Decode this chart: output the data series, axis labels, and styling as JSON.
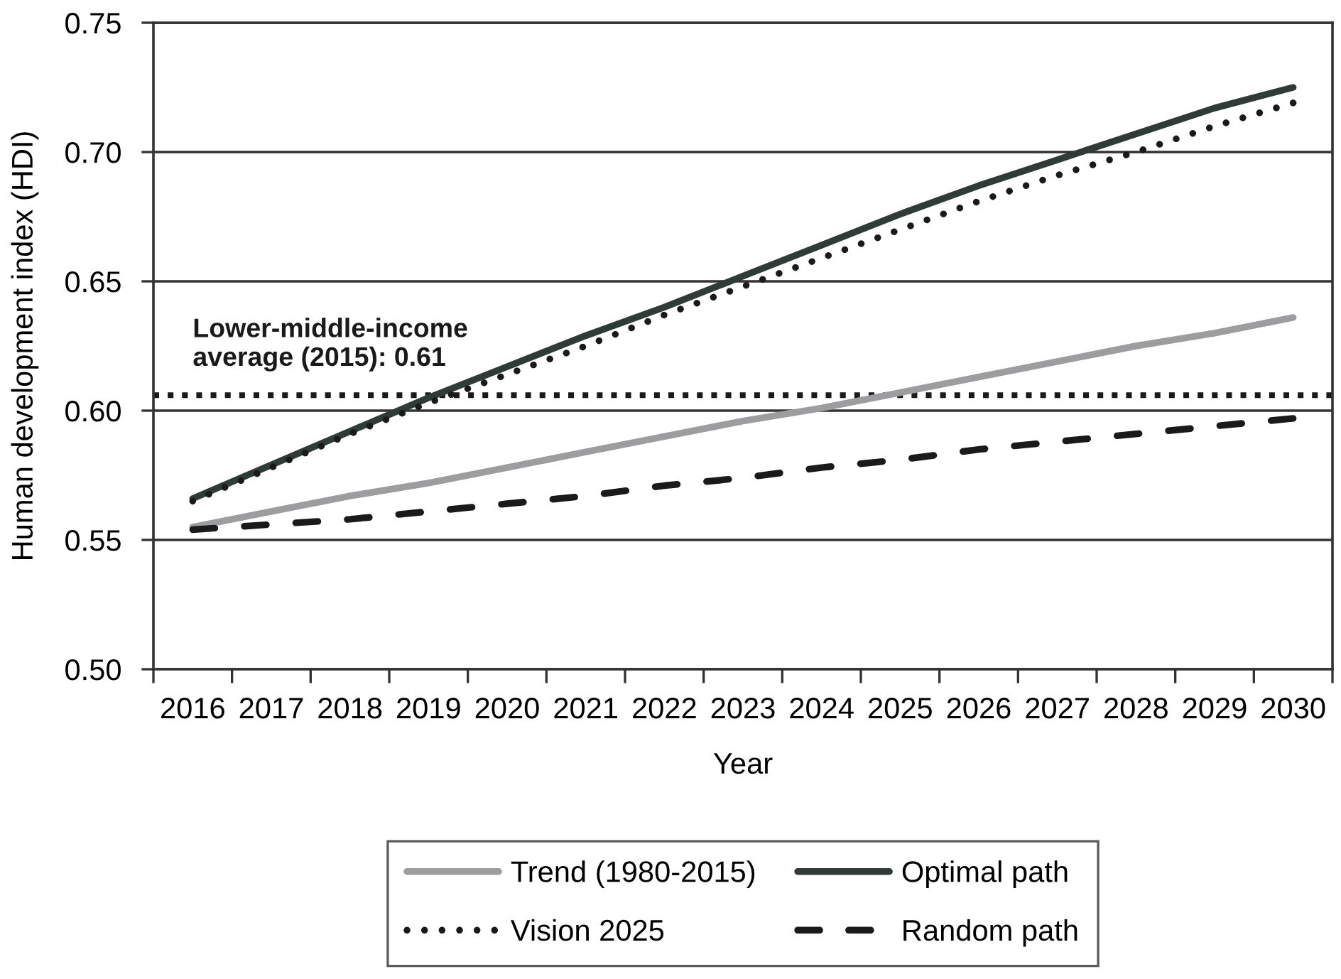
{
  "chart_data": {
    "type": "line",
    "xlabel": "Year",
    "ylabel": "Human development index (HDI)",
    "categories": [
      "2016",
      "2017",
      "2018",
      "2019",
      "2020",
      "2021",
      "2022",
      "2023",
      "2024",
      "2025",
      "2026",
      "2027",
      "2028",
      "2029",
      "2030"
    ],
    "series": [
      {
        "name": "Trend (1980-2015)",
        "color": "#9d9d9f",
        "line_style": "solid",
        "values": [
          0.555,
          0.561,
          0.567,
          0.572,
          0.578,
          0.584,
          0.59,
          0.596,
          0.601,
          0.607,
          0.613,
          0.619,
          0.625,
          0.63,
          0.636
        ]
      },
      {
        "name": "Optimal path",
        "color": "#2f3b37",
        "line_style": "solid",
        "values": [
          0.566,
          0.579,
          0.592,
          0.605,
          0.617,
          0.629,
          0.64,
          0.652,
          0.664,
          0.676,
          0.687,
          0.697,
          0.707,
          0.717,
          0.725
        ]
      },
      {
        "name": "Vision 2025",
        "color": "#1a1a1a",
        "line_style": "dotted",
        "values": [
          0.565,
          0.578,
          0.591,
          0.603,
          0.614,
          0.625,
          0.637,
          0.648,
          0.659,
          0.67,
          0.681,
          0.691,
          0.7,
          0.71,
          0.719
        ]
      },
      {
        "name": "Random path",
        "color": "#1a1a1a",
        "line_style": "dashed",
        "values": [
          0.554,
          0.556,
          0.558,
          0.561,
          0.564,
          0.567,
          0.571,
          0.574,
          0.578,
          0.581,
          0.585,
          0.588,
          0.591,
          0.594,
          0.597
        ]
      }
    ],
    "ylim": [
      0.5,
      0.75
    ],
    "yticks": [
      {
        "value": 0.5,
        "label": "0.50"
      },
      0.55,
      {
        "value": 0.6,
        "label": "0.60"
      },
      0.65,
      {
        "value": 0.7,
        "label": "0.70"
      },
      0.75
    ],
    "grid": "y",
    "legend": "bottom",
    "ref_lines": [
      {
        "axis": "y",
        "value": 0.606,
        "label": "Lower-middle-income\naverage (2015): 0.61",
        "color": "#1a1a1a",
        "line_style": "dotted"
      }
    ]
  }
}
